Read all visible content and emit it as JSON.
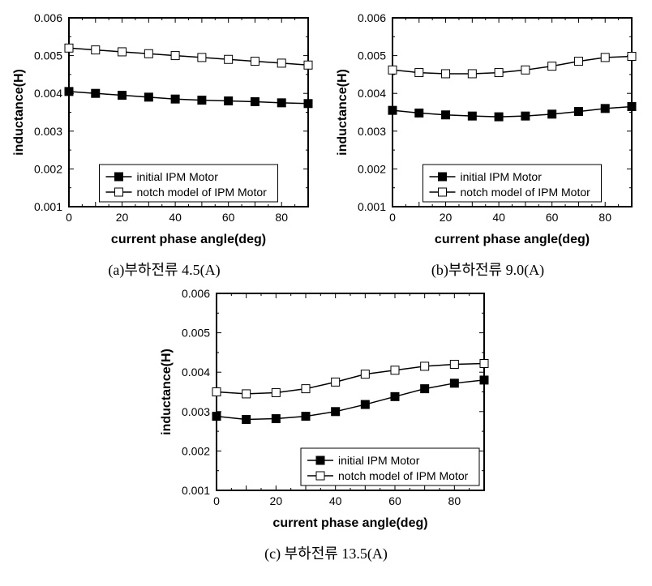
{
  "global": {
    "xlabel": "current phase angle(deg)",
    "ylabel": "inductance(H)",
    "xlim": [
      0,
      90
    ],
    "xtick_step": 10,
    "x_minor_step": 5,
    "ylim": [
      0.001,
      0.006
    ],
    "ytick_step": 0.001,
    "legend": {
      "s1": "initial IPM Motor",
      "s2": "notch model of IPM Motor"
    },
    "colors": {
      "line": "#000000",
      "marker_fill_s1": "#000000",
      "marker_fill_s2": "#ffffff",
      "border": "#000000",
      "bg": "#ffffff"
    },
    "marker_size": 5,
    "line_width": 1.5,
    "axis_title_fontsize": 16,
    "tick_fontsize": 14,
    "legend_fontsize": 14,
    "caption_fontsize": 18
  },
  "panels": {
    "a": {
      "caption": "(a)부하전류 4.5(A)",
      "legend_pos": "bottom-center",
      "x": [
        0,
        10,
        20,
        30,
        40,
        50,
        60,
        70,
        80,
        90
      ],
      "s1": [
        0.00405,
        0.004,
        0.00395,
        0.0039,
        0.00385,
        0.00382,
        0.0038,
        0.00378,
        0.00375,
        0.00373
      ],
      "s2": [
        0.0052,
        0.00515,
        0.0051,
        0.00505,
        0.005,
        0.00495,
        0.0049,
        0.00485,
        0.0048,
        0.00475
      ]
    },
    "b": {
      "caption": "(b)부하전류 9.0(A)",
      "legend_pos": "bottom-center",
      "x": [
        0,
        10,
        20,
        30,
        40,
        50,
        60,
        70,
        80,
        90
      ],
      "s1": [
        0.00355,
        0.00348,
        0.00343,
        0.0034,
        0.00338,
        0.0034,
        0.00345,
        0.00352,
        0.0036,
        0.00365
      ],
      "s2": [
        0.00462,
        0.00455,
        0.00452,
        0.00452,
        0.00455,
        0.00462,
        0.00472,
        0.00485,
        0.00495,
        0.00498
      ]
    },
    "c": {
      "caption": "(c) 부하전류 13.5(A)",
      "legend_pos": "bottom-right",
      "x": [
        0,
        10,
        20,
        30,
        40,
        50,
        60,
        70,
        80,
        90
      ],
      "s1": [
        0.00288,
        0.0028,
        0.00282,
        0.00288,
        0.003,
        0.00318,
        0.00338,
        0.00358,
        0.00372,
        0.0038
      ],
      "s2": [
        0.0035,
        0.00345,
        0.00348,
        0.00358,
        0.00375,
        0.00395,
        0.00405,
        0.00415,
        0.0042,
        0.00422
      ]
    }
  }
}
